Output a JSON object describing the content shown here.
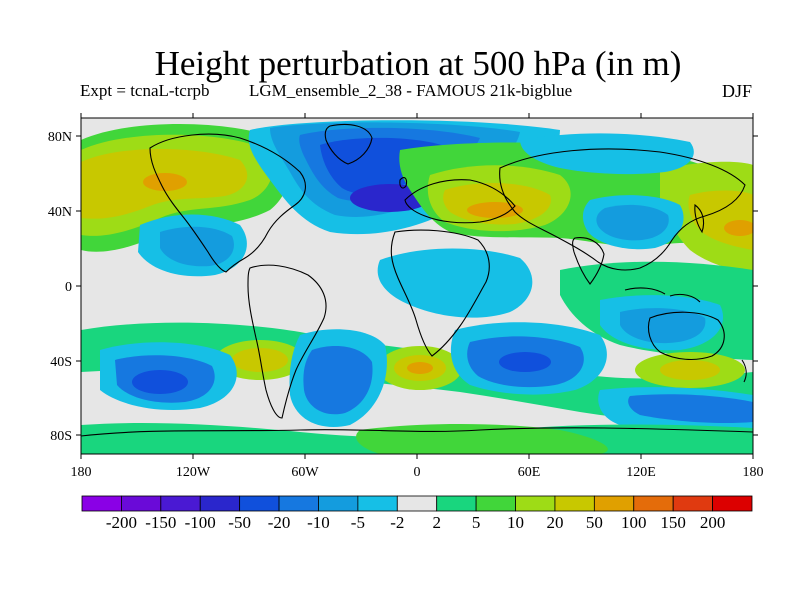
{
  "title": "Height perturbation at 500 hPa (in m)",
  "subtitle_left": "Expt = tcnaL-tcrpb",
  "subtitle_center": "LGM_ensemble_2_38 - FAMOUS 21k-bigblue",
  "subtitle_right": "DJF",
  "axes": {
    "lon_labels": [
      "180",
      "120W",
      "60W",
      "0",
      "60E",
      "120E",
      "180"
    ],
    "lat_labels": [
      "80N",
      "40N",
      "0",
      "40S",
      "80S"
    ]
  },
  "colorbar": {
    "labels": [
      "-200",
      "-150",
      "-100",
      "-50",
      "-20",
      "-10",
      "-5",
      "-2",
      "2",
      "5",
      "10",
      "20",
      "50",
      "100",
      "150",
      "200"
    ],
    "colors": [
      "#8a00e6",
      "#6a0ad8",
      "#4a19d3",
      "#2a26cc",
      "#1050dc",
      "#1678e0",
      "#149cde",
      "#16bfe6",
      "#e6e6e6",
      "#19d67e",
      "#41d63a",
      "#9edc16",
      "#c8c800",
      "#e0a000",
      "#e46c0a",
      "#e03a10",
      "#dc0000"
    ]
  },
  "fill_colors": {
    "neutral": "#e6e6e6",
    "pos_5": "#19d67e",
    "pos_10": "#41d63a",
    "pos_20": "#9edc16",
    "pos_50": "#c8c800",
    "pos_100": "#e0a000",
    "neg_2": "#16bfe6",
    "neg_5": "#149cde",
    "neg_10": "#1678e0",
    "neg_20": "#1050dc",
    "neg_50": "#2a26cc"
  }
}
